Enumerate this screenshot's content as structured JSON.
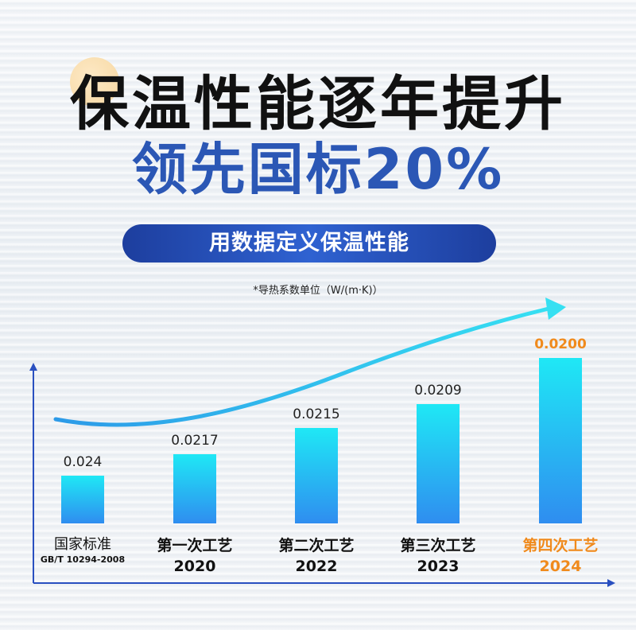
{
  "header": {
    "title": "保温性能逐年提升",
    "subtitle": "领先国标20%",
    "banner": "用数据定义保温性能",
    "unit_note": "*导热系数单位（W/(m·K)）"
  },
  "colors": {
    "title": "#111111",
    "subtitle": "#2b57b5",
    "banner": "#2446a8",
    "bar_top": "#1fe8f5",
    "bar_bottom": "#2f8df0",
    "highlight": "#f08a1c",
    "axis": "#2a50c0",
    "curve": "#22b8f0"
  },
  "chart_data": {
    "type": "bar",
    "categories": [
      {
        "label": "国家标准",
        "sub": "GB/T 10294-2008",
        "highlight": false
      },
      {
        "label": "第一次工艺",
        "sub": "2020",
        "highlight": false
      },
      {
        "label": "第二次工艺",
        "sub": "2022",
        "highlight": false
      },
      {
        "label": "第三次工艺",
        "sub": "2023",
        "highlight": false
      },
      {
        "label": "第四次工艺",
        "sub": "2024",
        "highlight": true
      }
    ],
    "values": [
      0.024,
      0.0217,
      0.0215,
      0.0209,
      0.02
    ],
    "value_labels": [
      "0.024",
      "0.0217",
      "0.0215",
      "0.0209",
      "0.0200"
    ],
    "trend_arrow": "rising",
    "grid": false
  }
}
